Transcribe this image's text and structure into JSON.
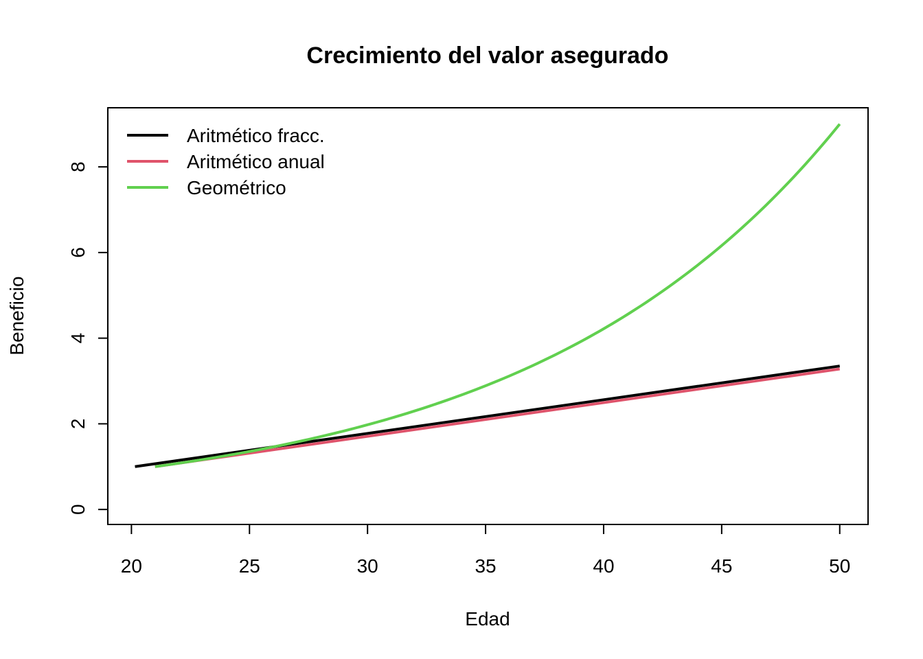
{
  "chart_data": {
    "type": "line",
    "title": "Crecimiento del valor asegurado",
    "xlabel": "Edad",
    "ylabel": "Beneficio",
    "xlim": [
      19,
      51.2
    ],
    "ylim": [
      -0.35,
      9.38
    ],
    "xticks": [
      20,
      25,
      30,
      35,
      40,
      45,
      50
    ],
    "yticks": [
      0,
      2,
      4,
      6,
      8
    ],
    "grid": false,
    "legend_position": "top-left",
    "series": [
      {
        "name": "Aritmético fracc.",
        "color": "#000000",
        "kind": "linear",
        "x": [
          20.15,
          50
        ],
        "y": [
          1.0,
          3.35
        ]
      },
      {
        "name": "Aritmético anual",
        "color": "#DF536B",
        "kind": "linear",
        "x": [
          21,
          50
        ],
        "y": [
          1.0,
          3.28
        ]
      },
      {
        "name": "Geométrico",
        "color": "#61D04F",
        "kind": "curve",
        "x": [
          21,
          23,
          25,
          27,
          29,
          31,
          33,
          35,
          37,
          39,
          41,
          43,
          45,
          47,
          49,
          50
        ],
        "y": [
          1.0,
          1.16,
          1.35,
          1.56,
          1.81,
          2.11,
          2.44,
          2.84,
          3.29,
          3.82,
          4.43,
          5.14,
          5.97,
          6.93,
          8.04,
          9.0
        ]
      }
    ]
  }
}
